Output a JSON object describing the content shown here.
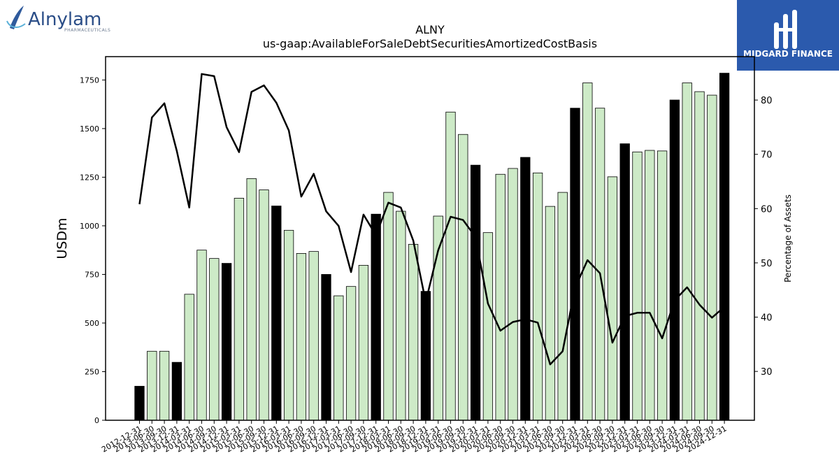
{
  "logo_left": {
    "name": "Alnylam",
    "sub": "PHARMACEUTICALS"
  },
  "logo_right": {
    "name": "MIDGARD FINANCE",
    "bg_color": "#2b5aad"
  },
  "colors": {
    "annual_bar": "#000000",
    "quarter_bar": "#cdeac7",
    "line": "#000000"
  },
  "chart_data": {
    "type": "bar",
    "title": "ALNY",
    "subtitle": "us-gaap:AvailableForSaleDebtSecuritiesAmortizedCostBasis",
    "ylabel": "USDm",
    "y2label": "Percentage of Assets",
    "ylim": [
      0,
      1870
    ],
    "y2lim": [
      21,
      88
    ],
    "yticks": [
      0,
      250,
      500,
      750,
      1000,
      1250,
      1500,
      1750
    ],
    "y2ticks": [
      30,
      40,
      50,
      60,
      70,
      80
    ],
    "categories": [
      "2012-12-31",
      "2013-06-30",
      "2013-09-30",
      "2013-12-31",
      "2014-03-31",
      "2014-06-30",
      "2014-09-30",
      "2014-12-31",
      "2015-03-31",
      "2015-06-30",
      "2015-09-30",
      "2015-12-31",
      "2016-03-31",
      "2016-06-30",
      "2016-09-30",
      "2016-12-31",
      "2017-03-31",
      "2017-06-30",
      "2017-09-30",
      "2017-12-31",
      "2018-03-31",
      "2018-06-30",
      "2018-09-30",
      "2018-12-31",
      "2019-03-31",
      "2019-06-30",
      "2019-09-30",
      "2019-12-31",
      "2020-03-31",
      "2020-06-30",
      "2020-09-30",
      "2020-12-31",
      "2021-03-31",
      "2021-06-30",
      "2021-09-30",
      "2021-12-31",
      "2022-03-31",
      "2022-06-30",
      "2022-09-30",
      "2022-12-31",
      "2023-03-31",
      "2023-06-30",
      "2023-09-30",
      "2023-12-31",
      "2024-03-31",
      "2024-06-30",
      "2024-09-30",
      "2024-12-31"
    ],
    "series": [
      {
        "type": "bar",
        "values": [
          175,
          355,
          355,
          298,
          648,
          875,
          832,
          807,
          1142,
          1243,
          1185,
          1102,
          977,
          858,
          868,
          750,
          640,
          688,
          797,
          1060,
          1172,
          1075,
          905,
          663,
          1050,
          1585,
          1470,
          1312,
          965,
          1265,
          1295,
          1352,
          1272,
          1100,
          1172,
          1605,
          1735,
          1605,
          1252,
          1422,
          1380,
          1388,
          1385,
          1647,
          1735,
          1690,
          1672,
          1785
        ]
      },
      {
        "type": "line",
        "axis": "right",
        "values": [
          60.8,
          76.8,
          79.4,
          70.6,
          60.2,
          84.8,
          84.4,
          75.0,
          70.4,
          81.5,
          82.7,
          79.5,
          74.4,
          62.2,
          66.4,
          59.5,
          56.8,
          48.3,
          58.9,
          55.1,
          61.1,
          60.2,
          54.1,
          42.8,
          52.3,
          58.5,
          57.9,
          54.8,
          42.5,
          37.5,
          39.1,
          39.6,
          39.0,
          31.3,
          33.7,
          45.4,
          50.5,
          48.1,
          35.3,
          40.2,
          40.8,
          40.8,
          36.1,
          43.1,
          45.5,
          42.3,
          39.9,
          41.9
        ]
      }
    ],
    "annual_categories": [
      "2012-12-31",
      "2013-12-31",
      "2014-12-31",
      "2015-12-31",
      "2016-12-31",
      "2017-12-31",
      "2018-12-31",
      "2019-12-31",
      "2020-12-31",
      "2021-12-31",
      "2022-12-31",
      "2023-12-31",
      "2024-12-31"
    ]
  }
}
